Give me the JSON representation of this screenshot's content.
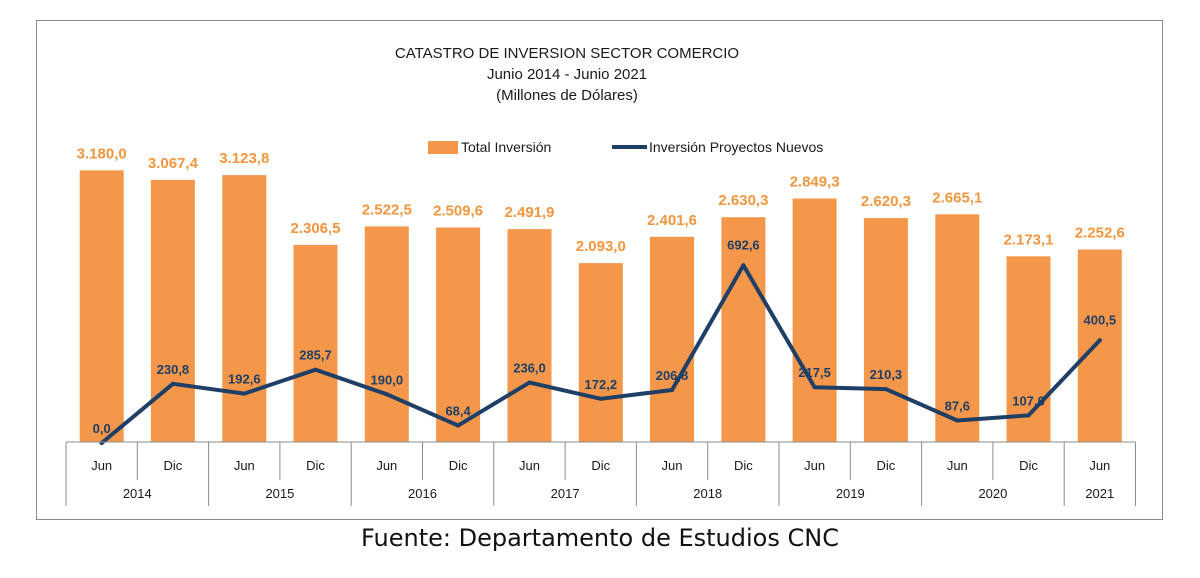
{
  "chart_data": {
    "type": "bar",
    "title": "CATASTRO DE INVERSION SECTOR COMERCIO",
    "subtitle_lines": [
      "Junio 2014 - Junio 2021",
      "(Millones de Dólares)"
    ],
    "categories": [
      "Jun",
      "Dic",
      "Jun",
      "Dic",
      "Jun",
      "Dic",
      "Jun",
      "Dic",
      "Jun",
      "Dic",
      "Jun",
      "Dic",
      "Jun",
      "Dic",
      "Jun"
    ],
    "groups": [
      {
        "label": "2014",
        "span": 2
      },
      {
        "label": "2015",
        "span": 2
      },
      {
        "label": "2016",
        "span": 2
      },
      {
        "label": "2017",
        "span": 2
      },
      {
        "label": "2018",
        "span": 2
      },
      {
        "label": "2019",
        "span": 2
      },
      {
        "label": "2020",
        "span": 2
      },
      {
        "label": "2021",
        "span": 1
      }
    ],
    "series": [
      {
        "name": "Total Inversión",
        "type": "bar",
        "color": "#f5974a",
        "values": [
          3180.0,
          3067.4,
          3123.8,
          2306.5,
          2522.5,
          2509.6,
          2491.9,
          2093.0,
          2401.6,
          2630.3,
          2849.3,
          2620.3,
          2665.1,
          2173.1,
          2252.6
        ],
        "labels": [
          "3.180,0",
          "3.067,4",
          "3.123,8",
          "2.306,5",
          "2.522,5",
          "2.509,6",
          "2.491,9",
          "2.093,0",
          "2.401,6",
          "2.630,3",
          "2.849,3",
          "2.620,3",
          "2.665,1",
          "2.173,1",
          "2.252,6"
        ]
      },
      {
        "name": "Inversión Proyectos Nuevos",
        "type": "line",
        "color": "#1f3f66",
        "values": [
          0.0,
          230.8,
          192.6,
          285.7,
          190.0,
          68.4,
          236.0,
          172.2,
          206.8,
          692.6,
          217.5,
          210.3,
          87.6,
          107.6,
          400.5
        ],
        "labels": [
          "0,0",
          "230,8",
          "192,6",
          "285,7",
          "190,0",
          "68,4",
          "236,0",
          "172,2",
          "206,8",
          "692,6",
          "217,5",
          "210,3",
          "87,6",
          "107,6",
          "400,5"
        ]
      }
    ],
    "ylim": [
      0,
      3300
    ],
    "grid": false,
    "legend": "top"
  },
  "source_note": "Fuente: Departamento de Estudios CNC"
}
